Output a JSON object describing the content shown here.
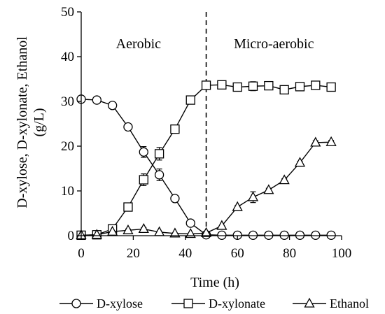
{
  "chart_data": {
    "type": "line",
    "title": "",
    "xlabel": "Time (h)",
    "ylabel": "D-xylose, D-xylonate, Ethanol (g/L)",
    "ylabel_lines": [
      "D-xylose, D-xylonate, Ethanol",
      "(g/L)"
    ],
    "xlim": [
      0,
      100
    ],
    "ylim": [
      0,
      50
    ],
    "xticks": [
      "0",
      "20",
      "40",
      "60",
      "80",
      "100"
    ],
    "yticks": [
      "0",
      "10",
      "20",
      "30",
      "40",
      "50"
    ],
    "grid": false,
    "legend_position": "bottom",
    "annotations": [
      {
        "text": "Aerobic",
        "x": 22,
        "y": 43
      },
      {
        "text": "Micro-aerobic",
        "x": 74,
        "y": 43
      }
    ],
    "phase_divider_x": 48,
    "series": [
      {
        "name": "D-xylose",
        "marker": "circle",
        "x": [
          0,
          6,
          12,
          18,
          24,
          30,
          36,
          42,
          48,
          54,
          60,
          66,
          72,
          78,
          84,
          90,
          96
        ],
        "y": [
          30.5,
          30.3,
          29.1,
          24.3,
          18.7,
          13.6,
          8.3,
          2.8,
          0.2,
          0.1,
          0.1,
          0.1,
          0.1,
          0.1,
          0.1,
          0.1,
          0.1
        ],
        "errors": [
          0,
          0,
          0,
          0,
          1.2,
          1.3,
          0.4,
          0.2,
          0,
          0,
          0,
          0,
          0,
          0,
          0,
          0,
          0
        ]
      },
      {
        "name": "D-xylonate",
        "marker": "square",
        "x": [
          0,
          6,
          12,
          18,
          24,
          30,
          36,
          42,
          48,
          54,
          60,
          66,
          72,
          78,
          84,
          90,
          96
        ],
        "y": [
          0.1,
          0.2,
          1.5,
          6.4,
          12.5,
          18.3,
          23.8,
          30.3,
          33.6,
          33.7,
          33.2,
          33.4,
          33.5,
          32.6,
          33.3,
          33.6,
          33.2
        ],
        "errors": [
          0,
          0,
          0.2,
          0.3,
          1.3,
          1.4,
          0.6,
          0.7,
          0.3,
          0,
          0,
          1.0,
          0.5,
          0,
          0,
          0,
          0
        ]
      },
      {
        "name": "Ethanol",
        "marker": "triangle",
        "x": [
          0,
          6,
          12,
          18,
          24,
          30,
          36,
          42,
          48,
          54,
          60,
          66,
          72,
          78,
          84,
          90,
          96
        ],
        "y": [
          0.1,
          0.2,
          0.9,
          1.2,
          1.5,
          0.8,
          0.5,
          0.4,
          0.6,
          2.2,
          6.4,
          8.6,
          10.2,
          12.4,
          16.3,
          20.8,
          20.9
        ],
        "errors": [
          0,
          0,
          0,
          0.3,
          0.3,
          0,
          0,
          0,
          0,
          0,
          0.3,
          1.2,
          0.4,
          0.3,
          0.3,
          0.4,
          0.4
        ]
      }
    ]
  }
}
